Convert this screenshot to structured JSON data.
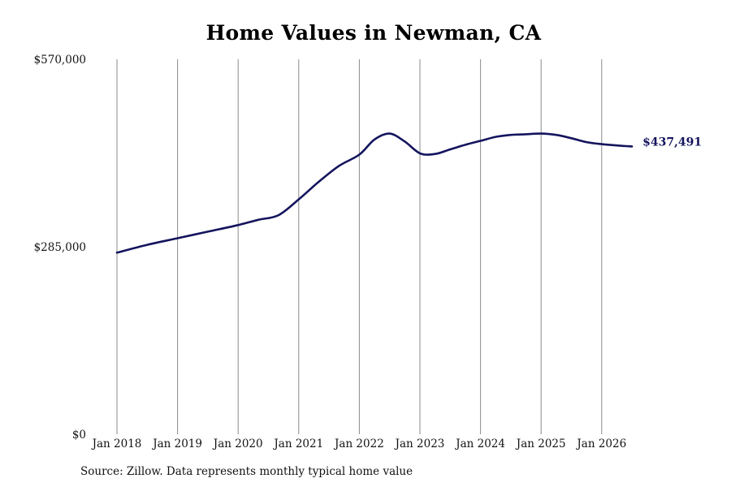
{
  "chart_data": {
    "type": "line",
    "title": "Home Values in Newman, CA",
    "source": "Source: Zillow. Data represents monthly typical home value",
    "x_ticks": [
      "Jan 2018",
      "Jan 2019",
      "Jan 2020",
      "Jan 2021",
      "Jan 2022",
      "Jan 2023",
      "Jan 2024",
      "Jan 2025",
      "Jan 2026"
    ],
    "y_ticks": [
      {
        "value": 0,
        "label": "$0"
      },
      {
        "value": 285000,
        "label": "$285,000"
      },
      {
        "value": 570000,
        "label": "$570,000"
      }
    ],
    "ylim": [
      0,
      570000
    ],
    "xlim": [
      "2018-01",
      "2026-12"
    ],
    "grid": "vertical",
    "series": [
      {
        "color": "#14145e",
        "end_label": "$437,491",
        "x": [
          "2018-01",
          "2018-07",
          "2019-01",
          "2019-07",
          "2020-01",
          "2020-05",
          "2020-09",
          "2021-01",
          "2021-05",
          "2021-09",
          "2022-01",
          "2022-04",
          "2022-07",
          "2022-10",
          "2023-01",
          "2023-04",
          "2023-07",
          "2023-10",
          "2024-01",
          "2024-04",
          "2024-07",
          "2024-10",
          "2025-01",
          "2025-04",
          "2025-07",
          "2025-10",
          "2026-01",
          "2026-04",
          "2026-07"
        ],
        "values": [
          276000,
          288000,
          298000,
          308000,
          318000,
          326000,
          333000,
          357000,
          384000,
          408000,
          425000,
          448000,
          457000,
          445000,
          427000,
          426000,
          433000,
          440000,
          446000,
          452000,
          455000,
          456000,
          457000,
          455000,
          450000,
          444000,
          441000,
          439000,
          437491
        ]
      }
    ]
  }
}
